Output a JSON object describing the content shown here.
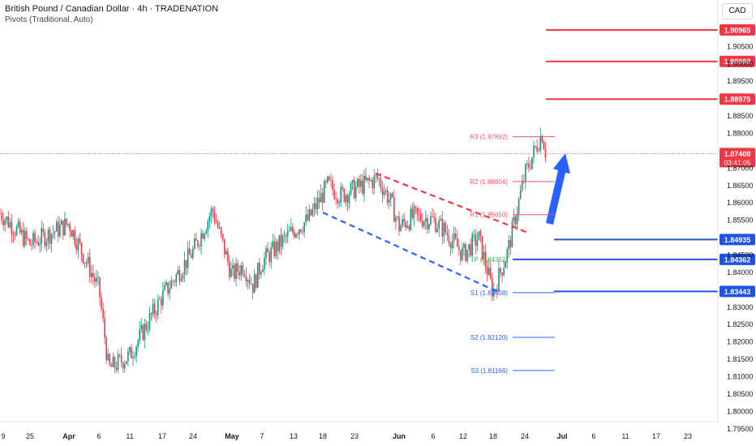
{
  "header": {
    "title": "British Pound / Canadian Dollar · 4h · TRADENATION",
    "subtitle": "Pivots (Traditional, Auto)",
    "currency_button": "CAD"
  },
  "colors": {
    "up": "#089981",
    "down": "#f23645",
    "axis_label": "#131722",
    "resistance": "#f23645",
    "support": "#1e53e5",
    "arrow": "#2962ff",
    "pivot_r": "#f7525f",
    "pivot_s": "#2962ff",
    "pivot_p": "#4caf50"
  },
  "chart_data": {
    "type": "candlestick",
    "symbol": "GBPCAD",
    "timeframe": "4h",
    "y_axis_ticks": [
      "1.90500",
      "1.90000",
      "1.89500",
      "1.88500",
      "1.88000",
      "1.87000",
      "1.86500",
      "1.86000",
      "1.85500",
      "1.84500",
      "1.84000",
      "1.83000",
      "1.82500",
      "1.82000",
      "1.81500",
      "1.81000",
      "1.80500",
      "1.80000",
      "1.79500"
    ],
    "ylim": [
      1.795,
      1.91
    ],
    "x_axis_ticks": [
      "9",
      "25",
      "Apr",
      "6",
      "11",
      "17",
      "24",
      "May",
      "7",
      "13",
      "18",
      "23",
      "Jun",
      "6",
      "12",
      "18",
      "24",
      "Jul",
      "6",
      "11",
      "17",
      "23"
    ],
    "close_path": [
      [
        "9",
        1.857
      ],
      [
        "25",
        1.848
      ],
      [
        "Apr",
        1.854
      ],
      [
        "6",
        1.835
      ],
      [
        "",
        1.812
      ],
      [
        "11",
        1.816
      ],
      [
        "17",
        1.833
      ],
      [
        "",
        1.846
      ],
      [
        "24",
        1.858
      ],
      [
        "",
        1.839
      ],
      [
        "May",
        1.842
      ],
      [
        "",
        1.836
      ],
      [
        "7",
        1.843
      ],
      [
        "13",
        1.852
      ],
      [
        "",
        1.855
      ],
      [
        "18",
        1.865
      ],
      [
        "",
        1.862
      ],
      [
        "23",
        1.867
      ],
      [
        "",
        1.86
      ],
      [
        "Jun",
        1.853
      ],
      [
        "",
        1.856
      ],
      [
        "6",
        1.855
      ],
      [
        "",
        1.852
      ],
      [
        "12",
        1.845
      ],
      [
        "",
        1.85
      ],
      [
        "18",
        1.834
      ],
      [
        "",
        1.846
      ],
      [
        "24",
        1.868
      ],
      [
        "",
        1.88
      ],
      [
        "",
        1.874
      ]
    ],
    "last_price": "1.87408",
    "countdown": "03:41:05",
    "pivots": [
      {
        "label": "R3 (1.87892)",
        "value": 1.87892,
        "kind": "r"
      },
      {
        "label": "R2 (1.86604)",
        "value": 1.86604,
        "kind": "r"
      },
      {
        "label": "R1 (1.85650)",
        "value": 1.8565,
        "kind": "r"
      },
      {
        "label": "P (1.84362)",
        "value": 1.84362,
        "kind": "p"
      },
      {
        "label": "S1 (1.83408)",
        "value": 1.83408,
        "kind": "s"
      },
      {
        "label": "S2 (1.82120)",
        "value": 1.8212,
        "kind": "s"
      },
      {
        "label": "S3 (1.81166)",
        "value": 1.81166,
        "kind": "s"
      }
    ],
    "resistance_levels": [
      "1.90965",
      "1.90060",
      "1.88975"
    ],
    "support_levels": [
      "1.84935",
      "1.84362",
      "1.83443"
    ]
  }
}
